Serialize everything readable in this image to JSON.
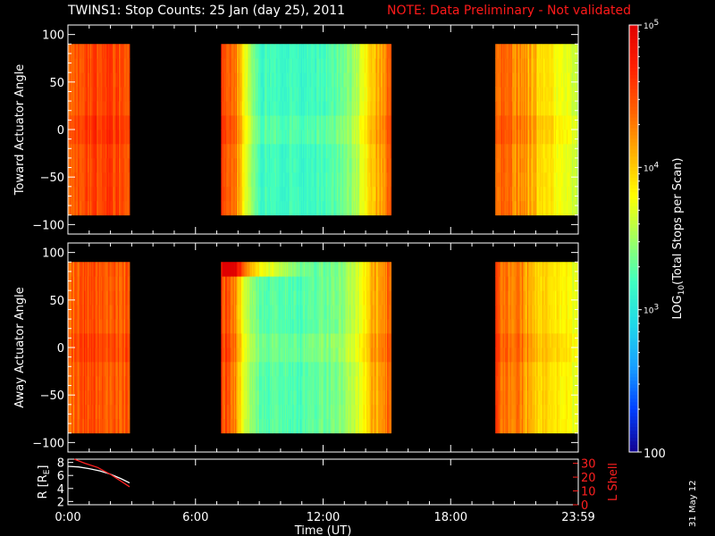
{
  "header": {
    "title": "TWINS1: Stop Counts: 25 Jan (day  25), 2011",
    "note": "NOTE: Data Preliminary - Not validated"
  },
  "footer": {
    "stamp": "31 May 12"
  },
  "colors": {
    "background": "#000000",
    "foreground": "#ffffff",
    "note": "#ff1a1a",
    "lshell": "#ff2020"
  },
  "chart_data": [
    {
      "type": "heatmap",
      "panel": "toward",
      "ylabel": "Toward Actuator Angle",
      "xlim": [
        0,
        24
      ],
      "ylim": [
        -110,
        110
      ],
      "yticks": [
        100,
        50,
        0,
        -50,
        -100
      ],
      "ytick_labels": [
        "100",
        "50",
        "0",
        "−50",
        "−100"
      ],
      "angle_range": [
        -90,
        90
      ],
      "data_segments_hours": [
        [
          0.0,
          2.9
        ],
        [
          7.2,
          15.2
        ],
        [
          20.1,
          24.0
        ]
      ],
      "log10_counts_profile": [
        {
          "hour": 0.0,
          "value": 4.35
        },
        {
          "hour": 0.5,
          "value": 4.45
        },
        {
          "hour": 1.2,
          "value": 4.55
        },
        {
          "hour": 2.0,
          "value": 4.55
        },
        {
          "hour": 2.9,
          "value": 4.4
        },
        {
          "hour": 7.2,
          "value": 4.6
        },
        {
          "hour": 7.8,
          "value": 4.4
        },
        {
          "hour": 8.4,
          "value": 3.7
        },
        {
          "hour": 9.0,
          "value": 3.2
        },
        {
          "hour": 11.0,
          "value": 3.15
        },
        {
          "hour": 12.5,
          "value": 3.25
        },
        {
          "hour": 13.5,
          "value": 3.5
        },
        {
          "hour": 14.5,
          "value": 4.1
        },
        {
          "hour": 15.2,
          "value": 4.4
        },
        {
          "hour": 20.1,
          "value": 4.4
        },
        {
          "hour": 21.0,
          "value": 4.3
        },
        {
          "hour": 22.5,
          "value": 3.9
        },
        {
          "hour": 24.0,
          "value": 3.6
        }
      ]
    },
    {
      "type": "heatmap",
      "panel": "away",
      "ylabel": "Away Actuator Angle",
      "xlim": [
        0,
        24
      ],
      "ylim": [
        -110,
        110
      ],
      "yticks": [
        100,
        50,
        0,
        -50,
        -100
      ],
      "ytick_labels": [
        "100",
        "50",
        "0",
        "−50",
        "−100"
      ],
      "angle_range": [
        -90,
        90
      ],
      "data_segments_hours": [
        [
          0.0,
          2.9
        ],
        [
          7.2,
          15.2
        ],
        [
          20.1,
          24.0
        ]
      ],
      "log10_counts_profile": [
        {
          "hour": 0.0,
          "value": 4.3
        },
        {
          "hour": 0.5,
          "value": 4.45
        },
        {
          "hour": 1.2,
          "value": 4.5
        },
        {
          "hour": 2.0,
          "value": 4.45
        },
        {
          "hour": 2.9,
          "value": 4.4
        },
        {
          "hour": 7.2,
          "value": 4.6
        },
        {
          "hour": 7.8,
          "value": 4.3
        },
        {
          "hour": 8.4,
          "value": 3.6
        },
        {
          "hour": 9.0,
          "value": 3.3
        },
        {
          "hour": 11.0,
          "value": 3.25
        },
        {
          "hour": 12.5,
          "value": 3.35
        },
        {
          "hour": 13.5,
          "value": 3.6
        },
        {
          "hour": 14.5,
          "value": 4.15
        },
        {
          "hour": 15.2,
          "value": 4.4
        },
        {
          "hour": 20.1,
          "value": 4.45
        },
        {
          "hour": 21.0,
          "value": 4.3
        },
        {
          "hour": 22.5,
          "value": 3.95
        },
        {
          "hour": 24.0,
          "value": 3.7
        }
      ]
    },
    {
      "type": "line",
      "panel": "orbit",
      "ylabel": "R [Rₑ]",
      "ylabel_main": "R [R",
      "ylabel_sub": "E",
      "ylabel_end": "]",
      "y2label": "L Shell",
      "xlabel": "Time (UT)",
      "xlim": [
        0,
        24
      ],
      "ylim": [
        1.5,
        8.5
      ],
      "y2lim": [
        0,
        33
      ],
      "yticks": [
        8,
        6,
        4,
        2
      ],
      "ytick_labels": [
        "8",
        "6",
        "4",
        "2"
      ],
      "y2ticks": [
        30,
        20,
        10,
        0
      ],
      "y2tick_labels": [
        "30",
        "20",
        "10",
        "0"
      ],
      "xticks": [
        0,
        6,
        12,
        18,
        24
      ],
      "xtick_labels": [
        "0:00",
        "6:00",
        "12:00",
        "18:00",
        "23:59"
      ],
      "series": [
        {
          "name": "R",
          "axis": "left",
          "color": "#ffffff",
          "x": [
            0.0,
            0.5,
            1.0,
            1.5,
            2.0,
            2.5,
            2.9
          ],
          "y": [
            7.4,
            7.3,
            7.05,
            6.7,
            6.2,
            5.5,
            4.85
          ]
        },
        {
          "name": "L Shell",
          "axis": "right",
          "color": "#ff2020",
          "x": [
            0.3,
            0.8,
            1.4,
            2.0,
            2.5,
            2.9
          ],
          "y": [
            33,
            30,
            27,
            22,
            17,
            13
          ]
        }
      ]
    },
    {
      "type": "heatmap",
      "panel": "colorbar",
      "ylabel_prefix": "LOG",
      "ylabel_sub": "10",
      "ylabel_rest": "(Total Stops per Scan)",
      "scale": "log",
      "range": [
        100,
        100000
      ],
      "tick_labels": [
        {
          "main": "10",
          "sup": "5",
          "value": 100000
        },
        {
          "main": "10",
          "sup": "4",
          "value": 10000
        },
        {
          "main": "10",
          "sup": "3",
          "value": 1000
        },
        {
          "main": "100",
          "sup": "",
          "value": 100
        }
      ],
      "colormap": [
        "#120090",
        "#0040ff",
        "#18a0ff",
        "#20d8e8",
        "#40ffc0",
        "#a0ff60",
        "#ffff00",
        "#ffb000",
        "#ff6000",
        "#ff2000",
        "#e00000"
      ]
    }
  ]
}
